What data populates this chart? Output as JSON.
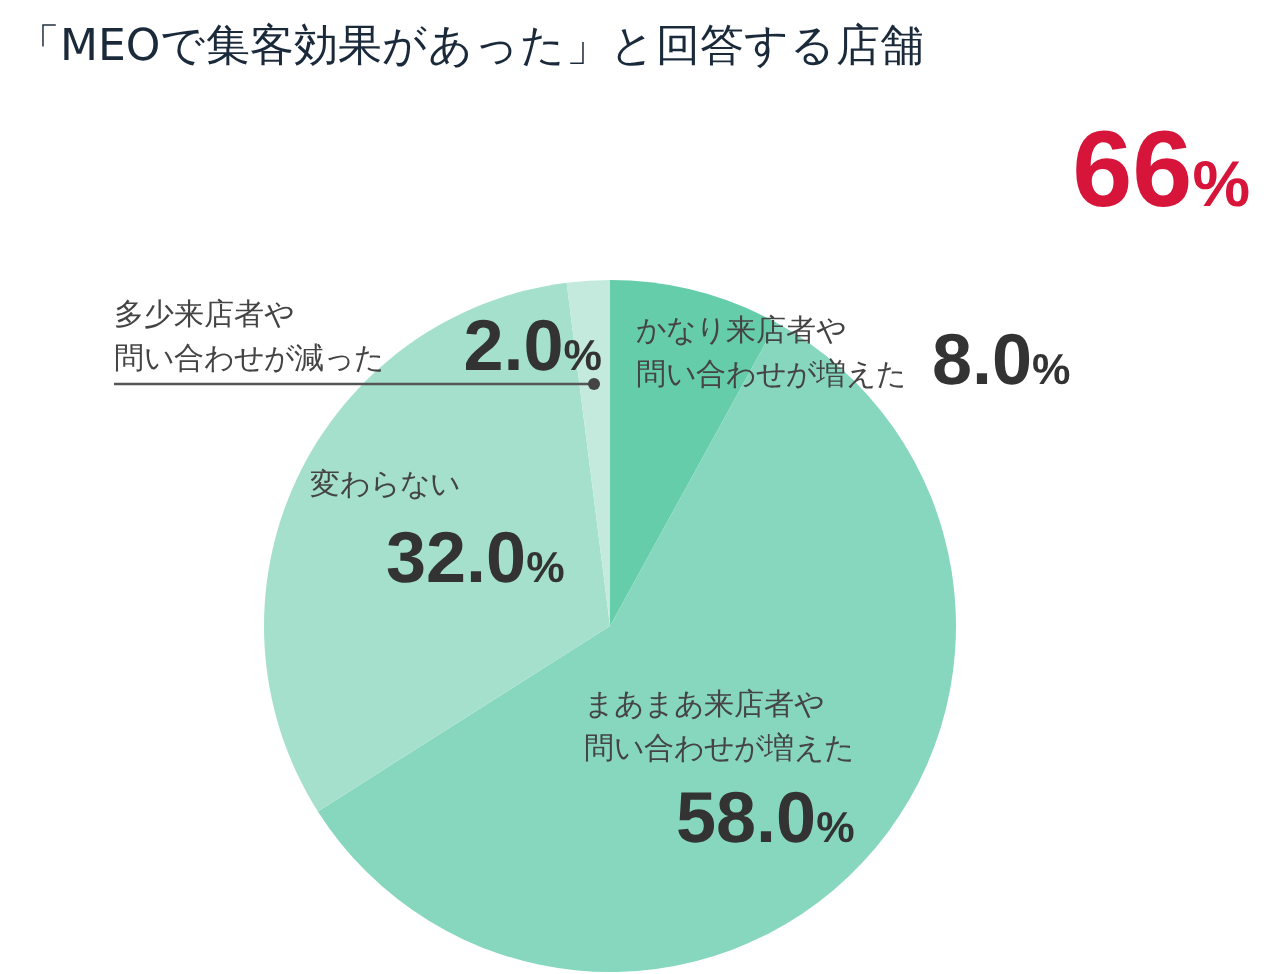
{
  "chart_data": {
    "type": "pie",
    "title": "「MEOで集客効果があった」と回答する店舗",
    "categories": [
      "かなり来店者や問い合わせが増えた",
      "まあまあ来店者や問い合わせが増えた",
      "変わらない",
      "多少来店者や問い合わせが減った"
    ],
    "values": [
      8.0,
      58.0,
      32.0,
      2.0
    ],
    "colors": [
      "#66cdaa",
      "#86d7bd",
      "#a5e0cd",
      "#c3eadd"
    ],
    "value_labels": [
      "8.0%",
      "58.0%",
      "32.0%",
      "2.0%"
    ],
    "annotations": [
      "66%"
    ]
  }
}
